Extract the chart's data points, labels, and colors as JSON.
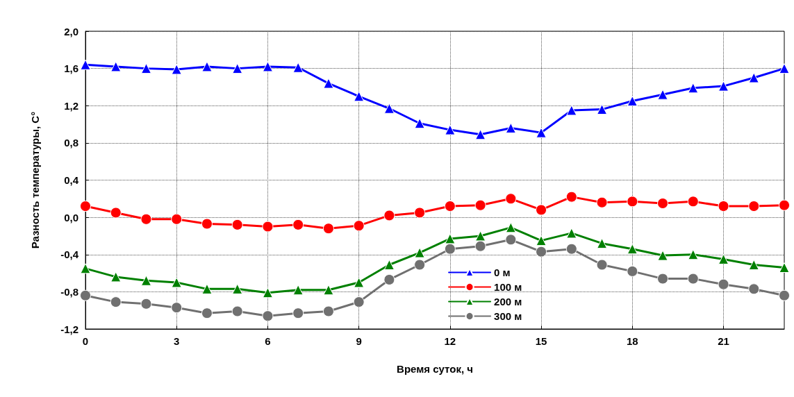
{
  "chart_data": {
    "type": "line",
    "xlabel": "Время суток, ч",
    "ylabel": "Разность температуры, С°",
    "x": [
      0,
      1,
      2,
      3,
      4,
      5,
      6,
      7,
      8,
      9,
      10,
      11,
      12,
      13,
      14,
      15,
      16,
      17,
      18,
      19,
      20,
      21,
      22,
      23
    ],
    "xlim": [
      0,
      23
    ],
    "xticks": [
      0,
      3,
      6,
      9,
      12,
      15,
      18,
      21
    ],
    "ylim": [
      -1.2,
      2.0
    ],
    "yticks": [
      {
        "value": -1.2,
        "label": "-1,2"
      },
      {
        "value": -0.8,
        "label": "-0,8"
      },
      {
        "value": -0.4,
        "label": "-0,4"
      },
      {
        "value": 0,
        "label": "0,0"
      },
      {
        "value": 0.4,
        "label": "0,4"
      },
      {
        "value": 0.8,
        "label": "0,8"
      },
      {
        "value": 1.2,
        "label": "1,2"
      },
      {
        "value": 1.6,
        "label": "1,6"
      },
      {
        "value": 2.0,
        "label": "2,0"
      }
    ],
    "grid": true,
    "legend": "bottom",
    "line_style": "solid",
    "series": [
      {
        "name": "0 м",
        "color": "#0000ff",
        "marker": "triangle",
        "values": [
          1.64,
          1.62,
          1.6,
          1.59,
          1.62,
          1.6,
          1.62,
          1.61,
          1.44,
          1.3,
          1.17,
          1.01,
          0.94,
          0.89,
          0.96,
          0.91,
          1.15,
          1.16,
          1.25,
          1.32,
          1.39,
          1.41,
          1.5,
          1.6
        ]
      },
      {
        "name": "100 м",
        "color": "#ff0000",
        "marker": "circle",
        "values": [
          0.12,
          0.05,
          -0.02,
          -0.02,
          -0.07,
          -0.08,
          -0.1,
          -0.08,
          -0.12,
          -0.09,
          0.02,
          0.05,
          0.12,
          0.13,
          0.2,
          0.08,
          0.22,
          0.16,
          0.17,
          0.15,
          0.17,
          0.12,
          0.12,
          0.13
        ]
      },
      {
        "name": "200 м",
        "color": "#008000",
        "marker": "triangle",
        "values": [
          -0.55,
          -0.64,
          -0.68,
          -0.7,
          -0.77,
          -0.77,
          -0.81,
          -0.78,
          -0.78,
          -0.7,
          -0.51,
          -0.38,
          -0.23,
          -0.2,
          -0.11,
          -0.25,
          -0.17,
          -0.28,
          -0.34,
          -0.41,
          -0.4,
          -0.45,
          -0.51,
          -0.54
        ]
      },
      {
        "name": "300 м",
        "color": "#707070",
        "marker": "circle",
        "values": [
          -0.84,
          -0.91,
          -0.93,
          -0.97,
          -1.03,
          -1.01,
          -1.06,
          -1.03,
          -1.01,
          -0.91,
          -0.67,
          -0.51,
          -0.34,
          -0.31,
          -0.24,
          -0.37,
          -0.34,
          -0.51,
          -0.58,
          -0.66,
          -0.66,
          -0.72,
          -0.77,
          -0.84
        ]
      }
    ]
  }
}
